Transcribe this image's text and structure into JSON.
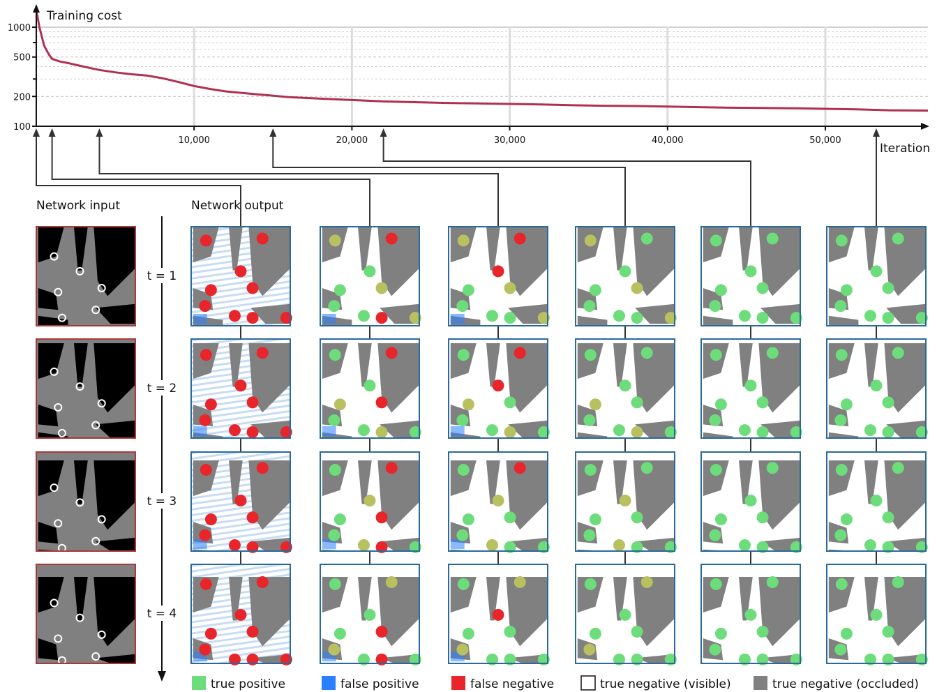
{
  "chart_data": {
    "type": "line",
    "ylabel": "Training cost",
    "xlabel": "Iteration",
    "x_ticks": [
      "10,000",
      "20,000",
      "30,000",
      "40,000",
      "50,000"
    ],
    "x_tick_values": [
      10000,
      20000,
      30000,
      40000,
      50000
    ],
    "y_ticks": [
      "100",
      "200",
      "500",
      "1000"
    ],
    "y_tick_values": [
      100,
      200,
      500,
      1000
    ],
    "yscale": "log",
    "xlim": [
      0,
      56500
    ],
    "ylim": [
      100,
      1500
    ],
    "grid": true,
    "line_color": "#b03050",
    "series": [
      {
        "x": [
          0,
          200,
          500,
          800,
          1000,
          1500,
          2000,
          3000,
          4000,
          5000,
          6000,
          7000,
          8000,
          9000,
          10000,
          11000,
          12000,
          14000,
          16000,
          18000,
          20000,
          22000,
          24000,
          26000,
          28000,
          30000,
          32000,
          34000,
          36000,
          38000,
          40000,
          42000,
          44000,
          46000,
          48000,
          50000,
          52000,
          54000,
          56500
        ],
        "y": [
          1500,
          1000,
          650,
          530,
          480,
          450,
          435,
          400,
          370,
          350,
          335,
          325,
          305,
          280,
          255,
          238,
          225,
          210,
          197,
          190,
          184,
          178,
          175,
          172,
          170,
          168,
          166,
          163,
          161,
          160,
          158,
          156,
          154,
          153,
          152,
          150,
          148,
          145,
          144
        ]
      }
    ],
    "snapshot_iterations": [
      0,
      1000,
      4000,
      15000,
      22000,
      50000,
      56000
    ]
  },
  "panel_labels": {
    "input": "Network input",
    "output": "Network output"
  },
  "time_labels": [
    "t = 1",
    "t = 2",
    "t = 3",
    "t = 4"
  ],
  "legend": [
    {
      "label": "true positive",
      "color": "#6ddc7a"
    },
    {
      "label": "false positive",
      "color": "#2a7fff"
    },
    {
      "label": "false negative",
      "color": "#e8252a"
    },
    {
      "label": "true negative (visible)",
      "color": "#ffffff"
    },
    {
      "label": "true negative (occluded)",
      "color": "#808080"
    }
  ]
}
